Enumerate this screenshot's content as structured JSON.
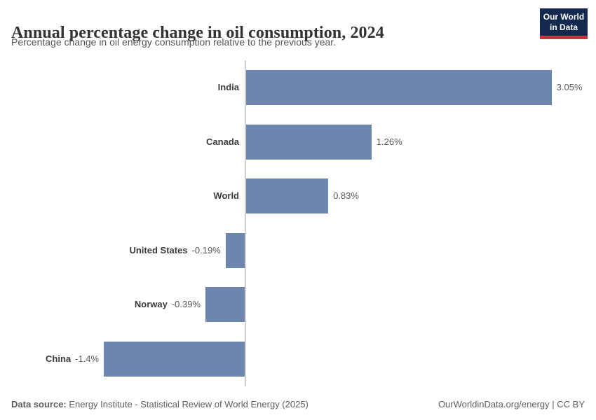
{
  "header": {
    "title": "Annual percentage change in oil consumption, 2024",
    "subtitle": "Percentage change in oil energy consumption relative to the previous year.",
    "logo": {
      "line1": "Our World",
      "line2": "in Data"
    }
  },
  "chart_data": {
    "type": "bar",
    "orientation": "horizontal",
    "title": "Annual percentage change in oil consumption, 2024",
    "xlabel": "",
    "ylabel": "",
    "categories": [
      "India",
      "Canada",
      "World",
      "United States",
      "Norway",
      "China"
    ],
    "values": [
      3.05,
      1.26,
      0.83,
      -0.19,
      -0.39,
      -1.4
    ],
    "value_labels": [
      "3.05%",
      "1.26%",
      "0.83%",
      "-0.19%",
      "-0.39%",
      "-1.4%"
    ],
    "unit": "%",
    "xlim": [
      -1.4,
      3.05
    ],
    "grid": false,
    "legend": false,
    "zero_axis_line": true
  },
  "colors": {
    "bar": "#6d86ad",
    "axis_line": "#d0d0d0",
    "title": "#333333",
    "subtitle": "#555555",
    "country_label": "#3a3a3a",
    "value_label": "#585858",
    "footer": "#5e5e5e",
    "logo_bg": "#132a4e",
    "logo_accent": "#cf2f3c"
  },
  "footer": {
    "source_label": "Data source:",
    "source_text": " Energy Institute - Statistical Review of World Energy (2025)",
    "right_text": "OurWorldinData.org/energy | CC BY"
  }
}
